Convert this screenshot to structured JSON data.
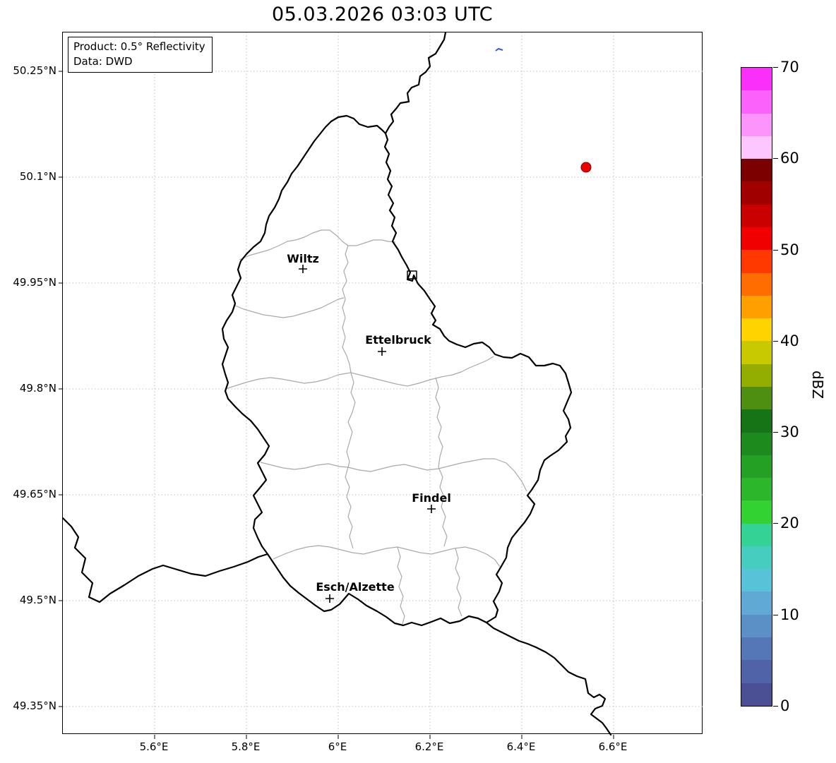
{
  "title": "05.03.2026 03:03 UTC",
  "info_box": {
    "product_line": "Product: 0.5° Reflectivity",
    "data_line": "Data: DWD"
  },
  "axes": {
    "lat_ticks": [
      "50.25°N",
      "50.1°N",
      "49.95°N",
      "49.8°N",
      "49.65°N",
      "49.5°N",
      "49.35°N"
    ],
    "lon_ticks": [
      "5.6°E",
      "5.8°E",
      "6°E",
      "6.2°E",
      "6.4°E",
      "6.6°E"
    ]
  },
  "map": {
    "cities": [
      {
        "name": "Wiltz"
      },
      {
        "name": "Ettelbruck"
      },
      {
        "name": "Findel"
      },
      {
        "name": "Esch/Alzette"
      }
    ],
    "markers": {
      "radar_dot_color": "#f10000",
      "radar_dot_edge_color": "#7a0000",
      "echo_dot_color": "#3b5bd6"
    },
    "border_color": "#000000",
    "district_border_color": "#a9a9a9",
    "grid_color": "#c0c0c0"
  },
  "colorbar": {
    "label": "dBZ",
    "tick_labels": [
      "70",
      "60",
      "50",
      "40",
      "30",
      "20",
      "10",
      "0"
    ],
    "colors_top_to_bottom": [
      "#fa30fa",
      "#fb62fb",
      "#fc94fc",
      "#fec6fe",
      "#7b0000",
      "#a10000",
      "#c90000",
      "#f00000",
      "#ff3900",
      "#ff6c00",
      "#ffa000",
      "#ffd300",
      "#c9c900",
      "#93ad00",
      "#4e8f12",
      "#167416",
      "#1d8a1d",
      "#24a024",
      "#2bb62b",
      "#32d232",
      "#35d295",
      "#47ccc0",
      "#58c3d8",
      "#5fa9d4",
      "#5b90c6",
      "#5577b7",
      "#5063a8",
      "#4b5095"
    ]
  }
}
